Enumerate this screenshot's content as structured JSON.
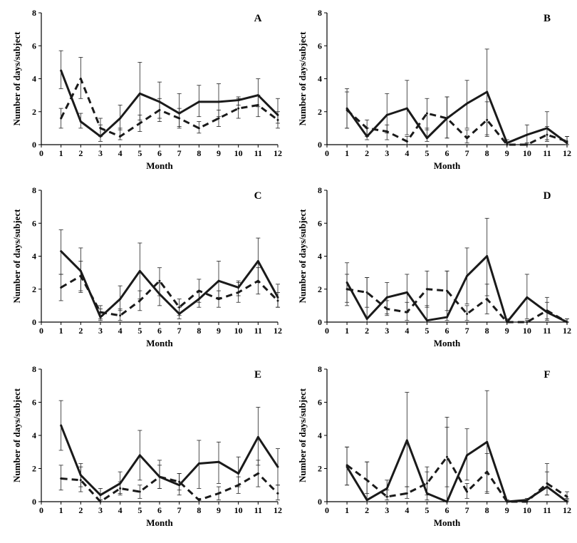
{
  "chart_data": [
    {
      "type": "line",
      "panel_label": "A",
      "x": [
        1,
        2,
        3,
        4,
        5,
        6,
        7,
        8,
        9,
        10,
        11,
        12
      ],
      "xlabel": "Month",
      "ylabel": "Number of days/subject",
      "xlim": [
        0,
        12
      ],
      "ylim": [
        0,
        8
      ],
      "xticks": [
        0,
        1,
        2,
        3,
        4,
        5,
        6,
        7,
        8,
        9,
        10,
        11,
        12
      ],
      "yticks": [
        0,
        2,
        4,
        6,
        8
      ],
      "series": [
        {
          "line_style": "solid",
          "values": [
            4.5,
            1.4,
            0.5,
            1.6,
            3.1,
            2.6,
            1.9,
            2.6,
            2.6,
            2.7,
            3.0,
            1.8
          ],
          "err_low": [
            3.4,
            1.0,
            0.2,
            0.9,
            1.5,
            1.6,
            1.1,
            1.7,
            1.7,
            2.4,
            2.3,
            1.3
          ],
          "err_high": [
            5.7,
            1.9,
            1.2,
            2.4,
            5.0,
            3.8,
            3.1,
            3.6,
            3.7,
            2.9,
            4.0,
            2.8
          ]
        },
        {
          "line_style": "dashed",
          "values": [
            1.6,
            4.0,
            1.0,
            0.5,
            1.3,
            2.1,
            1.6,
            1.0,
            1.6,
            2.2,
            2.4,
            1.5
          ],
          "err_low": [
            1.0,
            2.8,
            0.5,
            0.3,
            0.8,
            1.4,
            1.0,
            0.7,
            1.1,
            1.6,
            1.7,
            1.0
          ],
          "err_high": [
            2.2,
            5.3,
            1.6,
            1.0,
            1.8,
            2.8,
            2.2,
            1.4,
            2.1,
            2.8,
            3.0,
            2.0
          ]
        }
      ]
    },
    {
      "type": "line",
      "panel_label": "B",
      "x": [
        1,
        2,
        3,
        4,
        5,
        6,
        7,
        8,
        9,
        10,
        11,
        12
      ],
      "xlabel": "Month",
      "ylabel": "Number of days/subject",
      "xlim": [
        0,
        12
      ],
      "ylim": [
        0,
        8
      ],
      "xticks": [
        0,
        1,
        2,
        3,
        4,
        5,
        6,
        7,
        8,
        9,
        10,
        11,
        12
      ],
      "yticks": [
        0,
        2,
        4,
        6,
        8
      ],
      "series": [
        {
          "line_style": "solid",
          "values": [
            2.2,
            0.5,
            1.8,
            2.2,
            0.4,
            1.6,
            2.5,
            3.2,
            0.1,
            0.6,
            1.0,
            0.1
          ],
          "err_low": [
            1.0,
            0.3,
            0.7,
            0.6,
            0.2,
            0.4,
            1.0,
            0.6,
            0.0,
            0.1,
            0.3,
            0.0
          ],
          "err_high": [
            3.4,
            1.0,
            3.1,
            3.9,
            1.0,
            2.9,
            3.9,
            5.8,
            0.3,
            1.2,
            2.0,
            0.5
          ]
        },
        {
          "line_style": "dashed",
          "values": [
            2.1,
            1.0,
            0.8,
            0.2,
            1.9,
            1.6,
            0.4,
            1.5,
            0.0,
            0.0,
            0.6,
            0.2
          ],
          "err_low": [
            1.0,
            0.5,
            0.3,
            0.0,
            0.9,
            0.4,
            0.1,
            0.5,
            0.0,
            0.0,
            0.2,
            0.0
          ],
          "err_high": [
            3.2,
            1.5,
            1.2,
            0.5,
            2.8,
            2.9,
            0.9,
            2.6,
            0.1,
            0.1,
            1.1,
            0.5
          ]
        }
      ]
    },
    {
      "type": "line",
      "panel_label": "C",
      "x": [
        1,
        2,
        3,
        4,
        5,
        6,
        7,
        8,
        9,
        10,
        11,
        12
      ],
      "xlabel": "Month",
      "ylabel": "Number of days/subject",
      "xlim": [
        0,
        12
      ],
      "ylim": [
        0,
        8
      ],
      "xticks": [
        0,
        1,
        2,
        3,
        4,
        5,
        6,
        7,
        8,
        9,
        10,
        11,
        12
      ],
      "yticks": [
        0,
        2,
        4,
        6,
        8
      ],
      "series": [
        {
          "line_style": "solid",
          "values": [
            4.3,
            3.1,
            0.3,
            1.4,
            3.1,
            1.7,
            0.5,
            1.4,
            2.5,
            2.1,
            3.7,
            1.5
          ],
          "err_low": [
            2.9,
            1.8,
            0.1,
            0.7,
            1.4,
            1.0,
            0.2,
            0.9,
            1.5,
            1.6,
            2.4,
            0.9
          ],
          "err_high": [
            5.6,
            4.5,
            0.8,
            2.2,
            4.8,
            2.4,
            0.9,
            1.9,
            3.7,
            2.5,
            5.1,
            2.3
          ]
        },
        {
          "line_style": "dashed",
          "values": [
            2.1,
            2.8,
            0.6,
            0.4,
            1.3,
            2.5,
            0.9,
            1.9,
            1.4,
            1.8,
            2.5,
            1.3
          ],
          "err_low": [
            1.3,
            1.9,
            0.2,
            0.1,
            0.7,
            1.6,
            0.4,
            1.2,
            0.9,
            1.2,
            1.7,
            0.9
          ],
          "err_high": [
            2.9,
            3.7,
            1.0,
            0.8,
            1.9,
            3.3,
            1.4,
            2.6,
            1.9,
            2.4,
            3.3,
            1.8
          ]
        }
      ]
    },
    {
      "type": "line",
      "panel_label": "D",
      "x": [
        1,
        2,
        3,
        4,
        5,
        6,
        7,
        8,
        9,
        10,
        11,
        12
      ],
      "xlabel": "Month",
      "ylabel": "Number of days/subject",
      "xlim": [
        0,
        12
      ],
      "ylim": [
        0,
        8
      ],
      "xticks": [
        0,
        1,
        2,
        3,
        4,
        5,
        6,
        7,
        8,
        9,
        10,
        11,
        12
      ],
      "yticks": [
        0,
        2,
        4,
        6,
        8
      ],
      "series": [
        {
          "line_style": "solid",
          "values": [
            2.4,
            0.2,
            1.5,
            1.8,
            0.1,
            0.3,
            2.8,
            4.0,
            0.0,
            1.5,
            0.6,
            0.0
          ],
          "err_low": [
            1.2,
            0.0,
            0.5,
            0.6,
            0.0,
            0.1,
            1.1,
            1.6,
            0.0,
            0.2,
            0.1,
            0.0
          ],
          "err_high": [
            3.6,
            2.7,
            2.4,
            2.9,
            1.0,
            3.1,
            4.5,
            6.3,
            0.2,
            2.9,
            1.5,
            0.2
          ]
        },
        {
          "line_style": "dashed",
          "values": [
            2.0,
            1.8,
            0.8,
            0.6,
            2.0,
            1.9,
            0.5,
            1.4,
            0.0,
            0.0,
            0.7,
            0.0
          ],
          "err_low": [
            1.0,
            0.9,
            0.4,
            0.1,
            0.9,
            0.7,
            0.1,
            0.5,
            0.0,
            0.0,
            0.2,
            0.0
          ],
          "err_high": [
            2.9,
            2.7,
            1.3,
            1.2,
            3.1,
            3.1,
            1.0,
            2.3,
            0.1,
            0.1,
            1.2,
            0.2
          ]
        }
      ]
    },
    {
      "type": "line",
      "panel_label": "E",
      "x": [
        1,
        2,
        3,
        4,
        5,
        6,
        7,
        8,
        9,
        10,
        11,
        12
      ],
      "xlabel": "Month",
      "ylabel": "Number of days/subject",
      "xlim": [
        0,
        12
      ],
      "ylim": [
        0,
        8
      ],
      "xticks": [
        0,
        1,
        2,
        3,
        4,
        5,
        6,
        7,
        8,
        9,
        10,
        11,
        12
      ],
      "yticks": [
        0,
        2,
        4,
        6,
        8
      ],
      "series": [
        {
          "line_style": "solid",
          "values": [
            4.6,
            1.6,
            0.4,
            1.1,
            2.8,
            1.5,
            1.0,
            2.3,
            2.4,
            1.7,
            3.9,
            2.1
          ],
          "err_low": [
            3.1,
            0.9,
            0.1,
            0.5,
            1.3,
            0.8,
            0.4,
            0.8,
            1.1,
            0.9,
            2.2,
            1.0
          ],
          "err_high": [
            6.1,
            2.3,
            0.8,
            1.8,
            4.3,
            2.5,
            1.7,
            3.7,
            3.6,
            2.7,
            5.7,
            3.2
          ]
        },
        {
          "line_style": "dashed",
          "values": [
            1.4,
            1.3,
            0.0,
            0.8,
            0.6,
            1.5,
            1.2,
            0.1,
            0.5,
            1.0,
            1.7,
            0.5
          ],
          "err_low": [
            0.7,
            0.6,
            0.0,
            0.4,
            0.2,
            0.8,
            0.7,
            0.0,
            0.1,
            0.5,
            0.9,
            0.1
          ],
          "err_high": [
            2.2,
            2.1,
            0.1,
            1.2,
            1.0,
            2.2,
            1.7,
            0.2,
            0.9,
            1.5,
            2.5,
            1.0
          ]
        }
      ]
    },
    {
      "type": "line",
      "panel_label": "F",
      "x": [
        1,
        2,
        3,
        4,
        5,
        6,
        7,
        8,
        9,
        10,
        11,
        12
      ],
      "xlabel": "Month",
      "ylabel": "Number of days/subject",
      "xlim": [
        0,
        12
      ],
      "ylim": [
        0,
        8
      ],
      "xticks": [
        0,
        1,
        2,
        3,
        4,
        5,
        6,
        7,
        8,
        9,
        10,
        11,
        12
      ],
      "yticks": [
        0,
        2,
        4,
        6,
        8
      ],
      "series": [
        {
          "line_style": "solid",
          "values": [
            2.1,
            0.1,
            0.8,
            3.7,
            0.5,
            0.0,
            2.8,
            3.6,
            0.0,
            0.1,
            0.9,
            0.0
          ],
          "err_low": [
            1.0,
            0.0,
            0.3,
            0.9,
            0.1,
            0.0,
            1.3,
            0.5,
            0.0,
            0.0,
            0.4,
            0.0
          ],
          "err_high": [
            3.3,
            2.4,
            1.3,
            6.6,
            2.1,
            5.1,
            4.4,
            6.7,
            0.1,
            0.2,
            2.3,
            0.2
          ]
        },
        {
          "line_style": "dashed",
          "values": [
            2.2,
            1.3,
            0.3,
            0.5,
            1.1,
            2.7,
            0.6,
            1.8,
            0.0,
            0.0,
            1.1,
            0.3
          ],
          "err_low": [
            1.0,
            0.5,
            0.1,
            0.2,
            0.4,
            0.9,
            0.2,
            0.6,
            0.0,
            0.0,
            0.4,
            0.1
          ],
          "err_high": [
            3.3,
            2.4,
            0.7,
            0.9,
            1.8,
            4.5,
            1.1,
            2.9,
            0.1,
            0.1,
            1.8,
            0.6
          ]
        }
      ]
    }
  ]
}
